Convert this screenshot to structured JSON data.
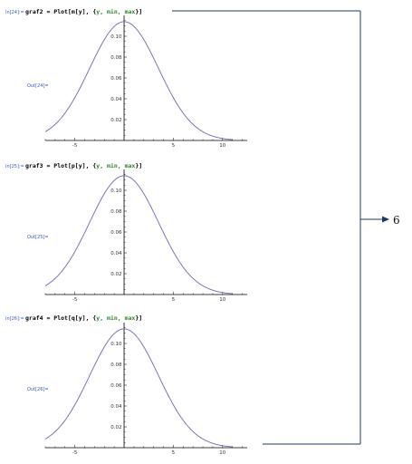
{
  "cells": [
    {
      "in_label": "In[24]:=",
      "code_prefix": "graf2 = Plot[",
      "code_func": "m[y]",
      "code_mid": ", {",
      "code_args": "y, min, max",
      "code_suffix": "}]",
      "out_label": "Out[24]="
    },
    {
      "in_label": "In[25]:=",
      "code_prefix": "graf3 = Plot[",
      "code_func": "p[y]",
      "code_mid": ", {",
      "code_args": "y, min, max",
      "code_suffix": "}]",
      "out_label": "Out[25]="
    },
    {
      "in_label": "In[26]:=",
      "code_prefix": "graf4 = Plot[",
      "code_func": "q[y]",
      "code_mid": ", {",
      "code_args": "y, min, max",
      "code_suffix": "}]",
      "out_label": "Out[26]="
    }
  ],
  "result_label": "6",
  "colors": {
    "curve": "#6a6ab8",
    "cell_label": "#3a58c8",
    "bracket": "#1f3864",
    "args": "#2a8a2a"
  },
  "chart_data": [
    {
      "type": "line",
      "x_ticks": [
        -5,
        5,
        10
      ],
      "y_ticks": [
        0.02,
        0.04,
        0.06,
        0.08,
        0.1
      ],
      "xlim": [
        -8,
        12.5
      ],
      "ylim": [
        0,
        0.12
      ],
      "series": [
        {
          "mean": 0,
          "sd": 3.5,
          "peak": 0.114,
          "x_range": [
            -8,
            11
          ]
        }
      ]
    },
    {
      "type": "line",
      "x_ticks": [
        -5,
        5,
        10
      ],
      "y_ticks": [
        0.02,
        0.04,
        0.06,
        0.08,
        0.1
      ],
      "xlim": [
        -8,
        12.5
      ],
      "ylim": [
        0,
        0.12
      ],
      "series": [
        {
          "mean": 0,
          "sd": 3.5,
          "peak": 0.114,
          "x_range": [
            -8,
            11
          ]
        }
      ]
    },
    {
      "type": "line",
      "x_ticks": [
        -5,
        5,
        10
      ],
      "y_ticks": [
        0.02,
        0.04,
        0.06,
        0.08,
        0.1
      ],
      "xlim": [
        -8,
        12.5
      ],
      "ylim": [
        0,
        0.12
      ],
      "series": [
        {
          "mean": 0,
          "sd": 3.5,
          "peak": 0.114,
          "x_range": [
            -8,
            11
          ]
        }
      ]
    }
  ]
}
